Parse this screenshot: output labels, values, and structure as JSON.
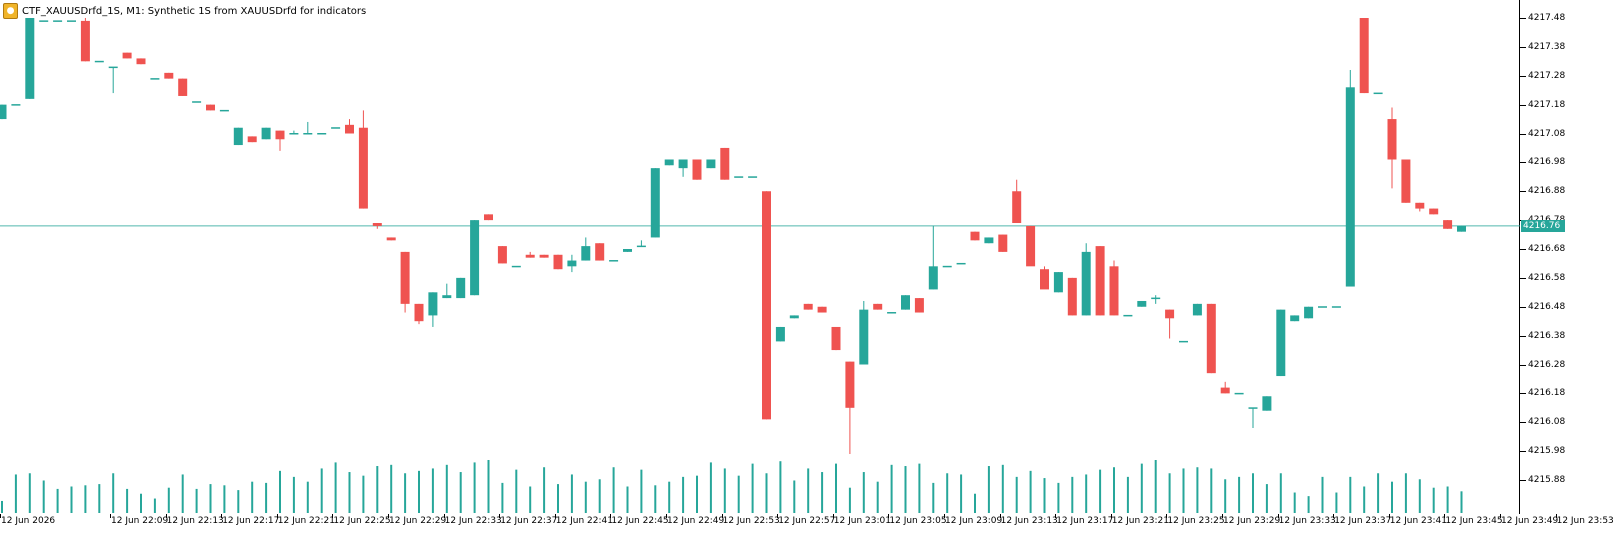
{
  "header": {
    "symbol_line": "CTF_XAUUSDrfd_1S, M1:  Synthetic 1S from XAUUSDrfd for indicators"
  },
  "colors": {
    "bull": "#26a69a",
    "bear": "#ef5350",
    "volume": "#26a69a",
    "price_line": "#26a69a"
  },
  "current_price": "4216.76",
  "chart_data": {
    "type": "candlestick",
    "ylim": [
      4215.72,
      4217.52
    ],
    "y_ticks": [
      "4217.48",
      "4217.38",
      "4217.28",
      "4217.18",
      "4217.08",
      "4216.98",
      "4216.88",
      "4216.78",
      "4216.68",
      "4216.58",
      "4216.48",
      "4216.38",
      "4216.28",
      "4216.18",
      "4216.08",
      "4215.98",
      "4215.88"
    ],
    "x_ticks": [
      "12 Jun 2026",
      "12 Jun 22:09",
      "12 Jun 22:13",
      "12 Jun 22:17",
      "12 Jun 22:21",
      "12 Jun 22:25",
      "12 Jun 22:29",
      "12 Jun 22:33",
      "12 Jun 22:37",
      "12 Jun 22:41",
      "12 Jun 22:45",
      "12 Jun 22:49",
      "12 Jun 22:53",
      "12 Jun 22:57",
      "12 Jun 23:01",
      "12 Jun 23:05",
      "12 Jun 23:09",
      "12 Jun 23:13",
      "12 Jun 23:17",
      "12 Jun 23:21",
      "12 Jun 23:25",
      "12 Jun 23:29",
      "12 Jun 23:33",
      "12 Jun 23:37",
      "12 Jun 23:41",
      "12 Jun 23:45",
      "12 Jun 23:49",
      "12 Jun 23:53"
    ],
    "candles": [
      [
        4217.13,
        4217.18,
        4217.13,
        4217.18
      ],
      [
        4217.18,
        4217.18,
        4217.18,
        4217.18
      ],
      [
        4217.2,
        4217.48,
        4217.2,
        4217.48
      ],
      [
        4217.47,
        4217.47,
        4217.47,
        4217.47
      ],
      [
        4217.47,
        4217.47,
        4217.47,
        4217.47
      ],
      [
        4217.47,
        4217.47,
        4217.47,
        4217.47
      ],
      [
        4217.47,
        4217.48,
        4217.33,
        4217.33
      ],
      [
        4217.33,
        4217.33,
        4217.33,
        4217.33
      ],
      [
        4217.31,
        4217.31,
        4217.22,
        4217.31
      ],
      [
        4217.36,
        4217.36,
        4217.34,
        4217.34
      ],
      [
        4217.34,
        4217.34,
        4217.32,
        4217.32
      ],
      [
        4217.27,
        4217.27,
        4217.27,
        4217.27
      ],
      [
        4217.29,
        4217.29,
        4217.27,
        4217.27
      ],
      [
        4217.27,
        4217.27,
        4217.21,
        4217.21
      ],
      [
        4217.19,
        4217.19,
        4217.19,
        4217.19
      ],
      [
        4217.18,
        4217.18,
        4217.16,
        4217.16
      ],
      [
        4217.16,
        4217.16,
        4217.16,
        4217.16
      ],
      [
        4217.04,
        4217.1,
        4217.04,
        4217.1
      ],
      [
        4217.07,
        4217.07,
        4217.05,
        4217.05
      ],
      [
        4217.06,
        4217.1,
        4217.06,
        4217.1
      ],
      [
        4217.09,
        4217.09,
        4217.02,
        4217.06
      ],
      [
        4217.08,
        4217.09,
        4217.08,
        4217.08
      ],
      [
        4217.08,
        4217.12,
        4217.08,
        4217.08
      ],
      [
        4217.08,
        4217.08,
        4217.08,
        4217.08
      ],
      [
        4217.1,
        4217.1,
        4217.1,
        4217.1
      ],
      [
        4217.11,
        4217.13,
        4217.08,
        4217.08
      ],
      [
        4217.1,
        4217.16,
        4216.82,
        4216.82
      ],
      [
        4216.77,
        4216.77,
        4216.75,
        4216.76
      ],
      [
        4216.72,
        4216.72,
        4216.71,
        4216.71
      ],
      [
        4216.67,
        4216.67,
        4216.46,
        4216.49
      ],
      [
        4216.49,
        4216.49,
        4216.42,
        4216.43
      ],
      [
        4216.45,
        4216.53,
        4216.41,
        4216.53
      ],
      [
        4216.51,
        4216.56,
        4216.51,
        4216.52
      ],
      [
        4216.51,
        4216.58,
        4216.51,
        4216.58
      ],
      [
        4216.52,
        4216.78,
        4216.52,
        4216.78
      ],
      [
        4216.8,
        4216.8,
        4216.78,
        4216.78
      ],
      [
        4216.69,
        4216.69,
        4216.63,
        4216.63
      ],
      [
        4216.62,
        4216.62,
        4216.62,
        4216.62
      ],
      [
        4216.66,
        4216.67,
        4216.65,
        4216.65
      ],
      [
        4216.66,
        4216.66,
        4216.65,
        4216.65
      ],
      [
        4216.66,
        4216.66,
        4216.61,
        4216.61
      ],
      [
        4216.62,
        4216.66,
        4216.6,
        4216.64
      ],
      [
        4216.64,
        4216.72,
        4216.64,
        4216.69
      ],
      [
        4216.7,
        4216.7,
        4216.64,
        4216.64
      ],
      [
        4216.64,
        4216.64,
        4216.64,
        4216.64
      ],
      [
        4216.67,
        4216.68,
        4216.67,
        4216.68
      ],
      [
        4216.69,
        4216.71,
        4216.69,
        4216.69
      ],
      [
        4216.72,
        4216.96,
        4216.72,
        4216.96
      ],
      [
        4216.97,
        4216.99,
        4216.97,
        4216.99
      ],
      [
        4216.96,
        4216.99,
        4216.93,
        4216.99
      ],
      [
        4216.99,
        4216.99,
        4216.92,
        4216.92
      ],
      [
        4216.96,
        4216.99,
        4216.96,
        4216.99
      ],
      [
        4217.03,
        4217.03,
        4216.92,
        4216.92
      ],
      [
        4216.93,
        4216.93,
        4216.93,
        4216.93
      ],
      [
        4216.93,
        4216.93,
        4216.93,
        4216.93
      ],
      [
        4216.88,
        4216.88,
        4216.09,
        4216.09
      ],
      [
        4216.36,
        4216.41,
        4216.36,
        4216.41
      ],
      [
        4216.44,
        4216.45,
        4216.44,
        4216.45
      ],
      [
        4216.49,
        4216.49,
        4216.47,
        4216.47
      ],
      [
        4216.48,
        4216.48,
        4216.46,
        4216.46
      ],
      [
        4216.41,
        4216.41,
        4216.33,
        4216.33
      ],
      [
        4216.29,
        4216.29,
        4215.97,
        4216.13
      ],
      [
        4216.28,
        4216.5,
        4216.28,
        4216.47
      ],
      [
        4216.49,
        4216.49,
        4216.47,
        4216.47
      ],
      [
        4216.46,
        4216.46,
        4216.46,
        4216.46
      ],
      [
        4216.47,
        4216.52,
        4216.47,
        4216.52
      ],
      [
        4216.51,
        4216.51,
        4216.46,
        4216.46
      ],
      [
        4216.54,
        4216.76,
        4216.54,
        4216.62
      ],
      [
        4216.62,
        4216.62,
        4216.62,
        4216.62
      ],
      [
        4216.63,
        4216.63,
        4216.63,
        4216.63
      ],
      [
        4216.74,
        4216.74,
        4216.71,
        4216.71
      ],
      [
        4216.7,
        4216.72,
        4216.7,
        4216.72
      ],
      [
        4216.73,
        4216.73,
        4216.67,
        4216.67
      ],
      [
        4216.88,
        4216.92,
        4216.77,
        4216.77
      ],
      [
        4216.76,
        4216.76,
        4216.63,
        4216.62
      ],
      [
        4216.61,
        4216.62,
        4216.55,
        4216.54
      ],
      [
        4216.53,
        4216.6,
        4216.53,
        4216.6
      ],
      [
        4216.58,
        4216.58,
        4216.45,
        4216.45
      ],
      [
        4216.45,
        4216.7,
        4216.45,
        4216.67
      ],
      [
        4216.69,
        4216.69,
        4216.45,
        4216.45
      ],
      [
        4216.62,
        4216.64,
        4216.45,
        4216.45
      ],
      [
        4216.45,
        4216.45,
        4216.45,
        4216.45
      ],
      [
        4216.48,
        4216.5,
        4216.48,
        4216.5
      ],
      [
        4216.51,
        4216.52,
        4216.49,
        4216.51
      ],
      [
        4216.47,
        4216.47,
        4216.37,
        4216.44
      ],
      [
        4216.36,
        4216.36,
        4216.36,
        4216.36
      ],
      [
        4216.45,
        4216.49,
        4216.45,
        4216.49
      ],
      [
        4216.49,
        4216.49,
        4216.25,
        4216.25
      ],
      [
        4216.2,
        4216.22,
        4216.18,
        4216.18
      ],
      [
        4216.18,
        4216.18,
        4216.18,
        4216.18
      ],
      [
        4216.13,
        4216.13,
        4216.06,
        4216.13
      ],
      [
        4216.12,
        4216.17,
        4216.12,
        4216.17
      ],
      [
        4216.24,
        4216.47,
        4216.24,
        4216.47
      ],
      [
        4216.43,
        4216.45,
        4216.43,
        4216.45
      ],
      [
        4216.44,
        4216.48,
        4216.44,
        4216.48
      ],
      [
        4216.48,
        4216.48,
        4216.48,
        4216.48
      ],
      [
        4216.48,
        4216.48,
        4216.48,
        4216.48
      ],
      [
        4216.55,
        4217.3,
        4216.55,
        4217.24
      ],
      [
        4217.48,
        4217.48,
        4217.22,
        4217.22
      ],
      [
        4217.22,
        4217.22,
        4217.22,
        4217.22
      ],
      [
        4217.13,
        4217.17,
        4216.89,
        4216.99
      ],
      [
        4216.99,
        4216.99,
        4216.84,
        4216.84
      ],
      [
        4216.84,
        4216.84,
        4216.81,
        4216.82
      ],
      [
        4216.82,
        4216.82,
        4216.8,
        4216.8
      ],
      [
        4216.78,
        4216.78,
        4216.75,
        4216.75
      ],
      [
        4216.74,
        4216.76,
        4216.74,
        4216.76
      ]
    ],
    "volumes": [
      10,
      32,
      33,
      27,
      20,
      22,
      23,
      24,
      33,
      20,
      16,
      12,
      21,
      32,
      20,
      24,
      23,
      19,
      26,
      25,
      35,
      30,
      26,
      37,
      42,
      34,
      31,
      39,
      40,
      33,
      35,
      37,
      40,
      34,
      42,
      44,
      25,
      36,
      22,
      38,
      24,
      32,
      26,
      28,
      38,
      22,
      36,
      23,
      26,
      30,
      31,
      42,
      37,
      31,
      41,
      33,
      43,
      27,
      37,
      34,
      41,
      21,
      34,
      26,
      40,
      39,
      41,
      25,
      33,
      32,
      16,
      39,
      40,
      30,
      35,
      29,
      25,
      30,
      32,
      36,
      38,
      30,
      41,
      44,
      33,
      37,
      38,
      37,
      28,
      30,
      33,
      24,
      33,
      17,
      14,
      30,
      17,
      30,
      22,
      33,
      26,
      33,
      28,
      21,
      22,
      18
    ]
  }
}
